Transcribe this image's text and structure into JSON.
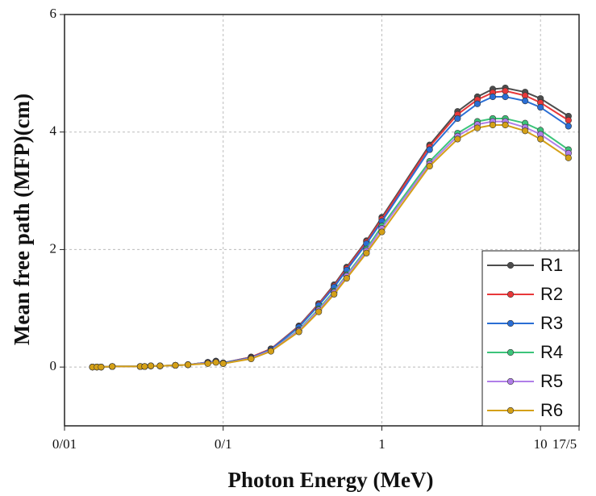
{
  "chart_data": {
    "type": "line",
    "x_label": "Photon Energy (MeV)",
    "y_label": "Mean free path (MFP)(cm)",
    "x": [
      0.015,
      0.016,
      0.017,
      0.02,
      0.03,
      0.032,
      0.035,
      0.04,
      0.05,
      0.06,
      0.08,
      0.09,
      0.1,
      0.15,
      0.2,
      0.3,
      0.4,
      0.5,
      0.6,
      0.8,
      1,
      2,
      3,
      4,
      5,
      6,
      8,
      10,
      15
    ],
    "xscale": "log",
    "xlim": [
      0.01,
      17.5
    ],
    "xticks": [
      {
        "value": 0.01,
        "label": "0/01"
      },
      {
        "value": 0.1,
        "label": "0/1"
      },
      1,
      10,
      {
        "value": 17.5,
        "label": "17/5"
      }
    ],
    "ylim": [
      -1,
      6
    ],
    "yticks": [
      0,
      2,
      4,
      6
    ],
    "grid": true,
    "legend": "lower right",
    "series": [
      {
        "name": "R1",
        "color": "#4d4d4d",
        "values": [
          0,
          0,
          0,
          0.01,
          0.01,
          0.01,
          0.02,
          0.02,
          0.03,
          0.04,
          0.08,
          0.1,
          0.07,
          0.17,
          0.31,
          0.7,
          1.08,
          1.4,
          1.7,
          2.15,
          2.55,
          3.78,
          4.35,
          4.6,
          4.73,
          4.75,
          4.68,
          4.57,
          4.27
        ]
      },
      {
        "name": "R2",
        "color": "#e8383a",
        "values": [
          0,
          0,
          0,
          0.01,
          0.01,
          0.01,
          0.02,
          0.02,
          0.03,
          0.04,
          0.08,
          0.1,
          0.07,
          0.17,
          0.31,
          0.69,
          1.07,
          1.38,
          1.68,
          2.13,
          2.52,
          3.75,
          4.3,
          4.55,
          4.67,
          4.7,
          4.62,
          4.5,
          4.2
        ]
      },
      {
        "name": "R3",
        "color": "#2a6ed4",
        "values": [
          0,
          0,
          0,
          0.01,
          0.01,
          0.01,
          0.02,
          0.02,
          0.03,
          0.04,
          0.08,
          0.1,
          0.07,
          0.16,
          0.3,
          0.68,
          1.05,
          1.36,
          1.65,
          2.1,
          2.48,
          3.7,
          4.23,
          4.48,
          4.6,
          4.6,
          4.53,
          4.42,
          4.1
        ]
      },
      {
        "name": "R4",
        "color": "#3cc47a",
        "values": [
          0,
          0,
          0,
          0.01,
          0.01,
          0.01,
          0.02,
          0.02,
          0.03,
          0.04,
          0.07,
          0.09,
          0.06,
          0.15,
          0.28,
          0.63,
          0.99,
          1.29,
          1.57,
          2.01,
          2.4,
          3.5,
          3.98,
          4.18,
          4.23,
          4.23,
          4.15,
          4.03,
          3.7
        ]
      },
      {
        "name": "R5",
        "color": "#b07ee8",
        "values": [
          0,
          0,
          0,
          0.01,
          0.01,
          0.01,
          0.02,
          0.02,
          0.03,
          0.04,
          0.07,
          0.09,
          0.06,
          0.15,
          0.28,
          0.62,
          0.97,
          1.27,
          1.55,
          1.98,
          2.36,
          3.46,
          3.93,
          4.13,
          4.18,
          4.18,
          4.08,
          3.96,
          3.64
        ]
      },
      {
        "name": "R6",
        "color": "#d4a017",
        "values": [
          0,
          0,
          0,
          0.01,
          0.01,
          0.01,
          0.02,
          0.02,
          0.03,
          0.04,
          0.06,
          0.08,
          0.06,
          0.14,
          0.27,
          0.6,
          0.94,
          1.24,
          1.51,
          1.94,
          2.3,
          3.42,
          3.88,
          4.07,
          4.12,
          4.12,
          4.02,
          3.88,
          3.56
        ]
      }
    ]
  }
}
